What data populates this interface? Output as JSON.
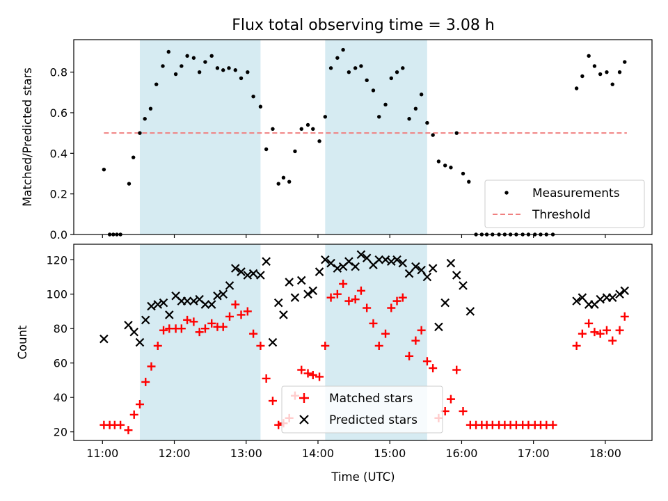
{
  "chart_data": {
    "title": "Flux total observing time = 3.08 h",
    "xlabel": "Time (UTC)",
    "x_range_hours": [
      10.6,
      18.65
    ],
    "x_ticks": [
      {
        "h": 11,
        "label": "11:00"
      },
      {
        "h": 12,
        "label": "12:00"
      },
      {
        "h": 13,
        "label": "13:00"
      },
      {
        "h": 14,
        "label": "14:00"
      },
      {
        "h": 15,
        "label": "15:00"
      },
      {
        "h": 16,
        "label": "16:00"
      },
      {
        "h": 17,
        "label": "17:00"
      },
      {
        "h": 18,
        "label": "18:00"
      }
    ],
    "shaded_intervals_hours": [
      [
        11.52,
        13.2
      ],
      [
        14.1,
        15.52
      ]
    ],
    "shade_color": "#add8e6",
    "panels": [
      {
        "type": "scatter",
        "ylabel": "Matched/Predicted stars",
        "ylim": [
          0.0,
          0.96
        ],
        "y_ticks": [
          0.0,
          0.2,
          0.4,
          0.6,
          0.8
        ],
        "y_tick_labels": [
          "0.0",
          "0.2",
          "0.4",
          "0.6",
          "0.8"
        ],
        "legend_position": "lower-right",
        "series": [
          {
            "name": "Measurements",
            "marker": "dot",
            "color": "#000000",
            "x": [
              11.02,
              11.1,
              11.15,
              11.2,
              11.25,
              11.37,
              11.43,
              11.52,
              11.59,
              11.67,
              11.75,
              11.84,
              11.92,
              12.02,
              12.1,
              12.18,
              12.27,
              12.35,
              12.43,
              12.52,
              12.6,
              12.68,
              12.76,
              12.85,
              12.93,
              13.02,
              13.1,
              13.2,
              13.28,
              13.37,
              13.45,
              13.52,
              13.6,
              13.68,
              13.77,
              13.86,
              13.93,
              14.02,
              14.1,
              14.18,
              14.27,
              14.35,
              14.43,
              14.52,
              14.6,
              14.68,
              14.77,
              14.85,
              14.94,
              15.02,
              15.1,
              15.18,
              15.27,
              15.36,
              15.44,
              15.52,
              15.6,
              15.68,
              15.77,
              15.85,
              15.93,
              16.02,
              16.1,
              16.2,
              16.28,
              16.35,
              16.43,
              16.52,
              16.6,
              16.68,
              16.76,
              16.85,
              16.93,
              17.02,
              17.1,
              17.18,
              17.27,
              17.6,
              17.68,
              17.77,
              17.85,
              17.93,
              18.02,
              18.1,
              18.2,
              18.27
            ],
            "y": [
              0.32,
              0.0,
              0.0,
              0.0,
              0.0,
              0.25,
              0.38,
              0.5,
              0.57,
              0.62,
              0.74,
              0.83,
              0.9,
              0.79,
              0.83,
              0.88,
              0.87,
              0.8,
              0.85,
              0.88,
              0.82,
              0.81,
              0.82,
              0.81,
              0.77,
              0.8,
              0.68,
              0.63,
              0.42,
              0.52,
              0.25,
              0.28,
              0.26,
              0.41,
              0.52,
              0.54,
              0.52,
              0.46,
              0.58,
              0.82,
              0.87,
              0.91,
              0.8,
              0.82,
              0.83,
              0.76,
              0.71,
              0.58,
              0.64,
              0.77,
              0.8,
              0.82,
              0.57,
              0.62,
              0.69,
              0.55,
              0.49,
              0.36,
              0.34,
              0.33,
              0.5,
              0.3,
              0.26,
              0.0,
              0.0,
              0.0,
              0.0,
              0.0,
              0.0,
              0.0,
              0.0,
              0.0,
              0.0,
              0.0,
              0.0,
              0.0,
              0.0,
              0.72,
              0.78,
              0.88,
              0.83,
              0.79,
              0.8,
              0.74,
              0.8,
              0.85
            ]
          },
          {
            "name": "Threshold",
            "marker": "dashed-line",
            "color": "#f08080",
            "x": [
              11.02,
              18.3
            ],
            "y": [
              0.5,
              0.5
            ]
          }
        ]
      },
      {
        "type": "scatter",
        "ylabel": "Count",
        "ylim": [
          15,
          129
        ],
        "y_ticks": [
          20,
          40,
          60,
          80,
          100,
          120
        ],
        "y_tick_labels": [
          "20",
          "40",
          "60",
          "80",
          "100",
          "120"
        ],
        "legend_position": "lower-center",
        "series": [
          {
            "name": "Matched stars",
            "marker": "plus",
            "color": "#ff0000",
            "x": [
              11.02,
              11.1,
              11.17,
              11.25,
              11.36,
              11.44,
              11.52,
              11.6,
              11.68,
              11.77,
              11.85,
              11.93,
              12.02,
              12.1,
              12.18,
              12.27,
              12.35,
              12.43,
              12.52,
              12.6,
              12.68,
              12.77,
              12.85,
              12.93,
              13.02,
              13.1,
              13.2,
              13.28,
              13.37,
              13.45,
              13.52,
              13.6,
              13.68,
              13.77,
              13.86,
              13.93,
              14.02,
              14.1,
              14.18,
              14.27,
              14.35,
              14.43,
              14.52,
              14.6,
              14.68,
              14.77,
              14.85,
              14.94,
              15.02,
              15.1,
              15.18,
              15.27,
              15.36,
              15.44,
              15.52,
              15.6,
              15.68,
              15.77,
              15.85,
              15.93,
              16.02,
              16.12,
              16.2,
              16.28,
              16.35,
              16.43,
              16.52,
              16.6,
              16.68,
              16.76,
              16.85,
              16.93,
              17.02,
              17.1,
              17.18,
              17.27,
              17.6,
              17.68,
              17.77,
              17.85,
              17.93,
              18.02,
              18.1,
              18.2,
              18.27
            ],
            "y": [
              24,
              24,
              24,
              24,
              21,
              30,
              36,
              49,
              58,
              70,
              79,
              80,
              80,
              80,
              85,
              84,
              78,
              80,
              83,
              81,
              81,
              87,
              94,
              88,
              90,
              77,
              70,
              51,
              38,
              24,
              25,
              28,
              41,
              56,
              54,
              53,
              52,
              70,
              98,
              100,
              106,
              96,
              97,
              102,
              92,
              83,
              70,
              77,
              92,
              96,
              98,
              64,
              73,
              79,
              61,
              57,
              28,
              32,
              39,
              56,
              32,
              24,
              24,
              24,
              24,
              24,
              24,
              24,
              24,
              24,
              24,
              24,
              24,
              24,
              24,
              24,
              70,
              77,
              83,
              78,
              77,
              79,
              73,
              79,
              87
            ]
          },
          {
            "name": "Predicted stars",
            "marker": "x",
            "color": "#000000",
            "x": [
              11.02,
              11.36,
              11.44,
              11.52,
              11.6,
              11.68,
              11.77,
              11.85,
              11.93,
              12.02,
              12.1,
              12.18,
              12.27,
              12.35,
              12.43,
              12.52,
              12.6,
              12.68,
              12.77,
              12.85,
              12.93,
              13.02,
              13.1,
              13.2,
              13.28,
              13.37,
              13.45,
              13.52,
              13.6,
              13.68,
              13.77,
              13.86,
              13.93,
              14.02,
              14.1,
              14.18,
              14.27,
              14.35,
              14.43,
              14.52,
              14.6,
              14.68,
              14.77,
              14.85,
              14.94,
              15.02,
              15.1,
              15.18,
              15.27,
              15.36,
              15.44,
              15.52,
              15.6,
              15.68,
              15.77,
              15.85,
              15.93,
              16.02,
              16.12,
              17.6,
              17.68,
              17.77,
              17.85,
              17.93,
              18.02,
              18.1,
              18.2,
              18.27
            ],
            "y": [
              74,
              82,
              78,
              72,
              85,
              93,
              94,
              95,
              88,
              99,
              96,
              96,
              96,
              97,
              94,
              94,
              99,
              100,
              105,
              115,
              113,
              111,
              112,
              111,
              119,
              72,
              95,
              88,
              107,
              98,
              108,
              100,
              102,
              113,
              120,
              118,
              115,
              116,
              119,
              116,
              123,
              121,
              117,
              120,
              120,
              119,
              120,
              118,
              112,
              116,
              114,
              110,
              115,
              81,
              95,
              118,
              111,
              105,
              90,
              96,
              98,
              94,
              94,
              97,
              98,
              98,
              100,
              102
            ]
          }
        ]
      }
    ]
  }
}
